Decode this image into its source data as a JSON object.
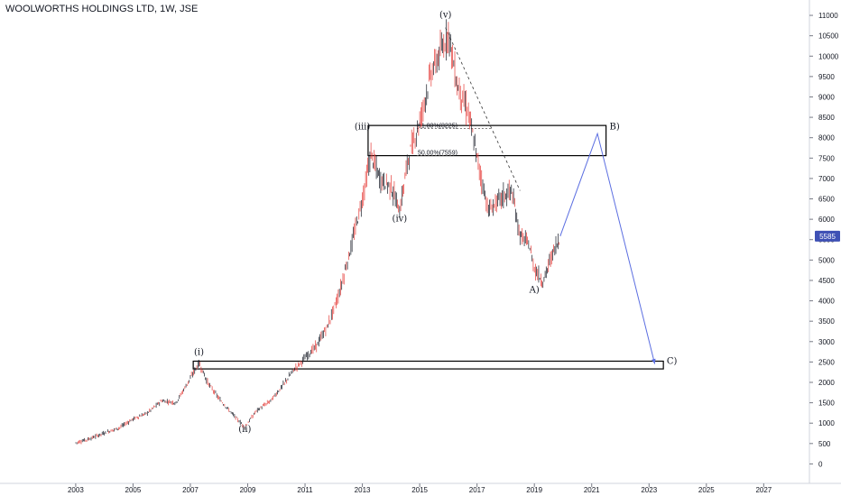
{
  "header": {
    "title": "WOOLWORTHS HOLDINGS LTD, 1W, JSE"
  },
  "colors": {
    "up": "#131722",
    "down": "#e53935",
    "projection": "#5b6ee1",
    "box": "#000000",
    "price_tag": "#3f51b5"
  },
  "chart_data": {
    "type": "line",
    "title": "WOOLWORTHS HOLDINGS LTD, 1W, JSE",
    "x_ticks": [
      "2003",
      "2005",
      "2007",
      "2009",
      "2011",
      "2013",
      "2015",
      "2017",
      "2019",
      "2021",
      "2023",
      "2025",
      "2027"
    ],
    "y_ticks": [
      0,
      500,
      1000,
      1500,
      2000,
      2500,
      3000,
      3500,
      4000,
      4500,
      5000,
      5500,
      6000,
      6500,
      7000,
      7500,
      8000,
      8500,
      9000,
      9500,
      10000,
      10500,
      11000
    ],
    "ylim": [
      -300,
      11200
    ],
    "xlim": [
      2002.5,
      2028.5
    ],
    "series": [
      {
        "values": [
          {
            "x": 2003.0,
            "y": 520
          },
          {
            "x": 2003.5,
            "y": 620
          },
          {
            "x": 2004.0,
            "y": 760
          },
          {
            "x": 2004.5,
            "y": 880
          },
          {
            "x": 2005.0,
            "y": 1100
          },
          {
            "x": 2005.5,
            "y": 1250
          },
          {
            "x": 2006.0,
            "y": 1550
          },
          {
            "x": 2006.5,
            "y": 1500
          },
          {
            "x": 2007.0,
            "y": 2100
          },
          {
            "x": 2007.3,
            "y": 2480
          },
          {
            "x": 2007.6,
            "y": 2000
          },
          {
            "x": 2008.0,
            "y": 1600
          },
          {
            "x": 2008.5,
            "y": 1200
          },
          {
            "x": 2008.9,
            "y": 900
          },
          {
            "x": 2009.3,
            "y": 1300
          },
          {
            "x": 2009.8,
            "y": 1550
          },
          {
            "x": 2010.2,
            "y": 1900
          },
          {
            "x": 2010.6,
            "y": 2300
          },
          {
            "x": 2011.0,
            "y": 2600
          },
          {
            "x": 2011.4,
            "y": 2900
          },
          {
            "x": 2011.8,
            "y": 3400
          },
          {
            "x": 2012.2,
            "y": 4200
          },
          {
            "x": 2012.6,
            "y": 5300
          },
          {
            "x": 2013.0,
            "y": 6500
          },
          {
            "x": 2013.3,
            "y": 7600
          },
          {
            "x": 2013.6,
            "y": 7000
          },
          {
            "x": 2014.0,
            "y": 6800
          },
          {
            "x": 2014.3,
            "y": 6200
          },
          {
            "x": 2014.6,
            "y": 7500
          },
          {
            "x": 2015.0,
            "y": 8400
          },
          {
            "x": 2015.4,
            "y": 9600
          },
          {
            "x": 2015.8,
            "y": 10200
          },
          {
            "x": 2016.0,
            "y": 10600
          },
          {
            "x": 2016.3,
            "y": 9300
          },
          {
            "x": 2016.7,
            "y": 8600
          },
          {
            "x": 2017.0,
            "y": 7500
          },
          {
            "x": 2017.4,
            "y": 6200
          },
          {
            "x": 2017.8,
            "y": 6500
          },
          {
            "x": 2018.2,
            "y": 6700
          },
          {
            "x": 2018.5,
            "y": 5600
          },
          {
            "x": 2018.8,
            "y": 5400
          },
          {
            "x": 2019.0,
            "y": 4800
          },
          {
            "x": 2019.3,
            "y": 4450
          },
          {
            "x": 2019.6,
            "y": 5100
          },
          {
            "x": 2019.9,
            "y": 5585
          }
        ]
      }
    ],
    "projection": [
      {
        "x": 2019.9,
        "y": 5585
      },
      {
        "x": 2021.2,
        "y": 8100
      },
      {
        "x": 2023.2,
        "y": 2450
      }
    ],
    "fib_dashed_line": [
      {
        "x": 2015.9,
        "y": 10700
      },
      {
        "x": 2018.5,
        "y": 6700
      }
    ],
    "zones": [
      {
        "y_low": 7560,
        "y_high": 8300,
        "x_start": 2013.2,
        "x_end": 2021.5
      },
      {
        "y_low": 2330,
        "y_high": 2520,
        "x_start": 2007.1,
        "x_end": 2023.5
      }
    ],
    "fib_levels": [
      {
        "label": "61.80%(8225)",
        "y": 8225,
        "x_start": 2014.9,
        "x_end": 2017.5
      },
      {
        "label": "50.00%(7559)",
        "y": 7559,
        "x_start": 2014.9,
        "x_end": 2016.2
      }
    ],
    "wave_labels": [
      {
        "text": "(i)",
        "x": 2007.3,
        "y": 2680
      },
      {
        "text": "(ii)",
        "x": 2008.9,
        "y": 780
      },
      {
        "text": "(iii)",
        "x": 2013.0,
        "y": 8200
      },
      {
        "text": "(iv)",
        "x": 2014.3,
        "y": 5950
      },
      {
        "text": "(v)",
        "x": 2015.9,
        "y": 10950
      },
      {
        "text": "A)",
        "x": 2019.0,
        "y": 4200
      },
      {
        "text": "B)",
        "x": 2021.8,
        "y": 8200
      },
      {
        "text": "C)",
        "x": 2023.8,
        "y": 2450
      }
    ],
    "last_price": 5585
  }
}
